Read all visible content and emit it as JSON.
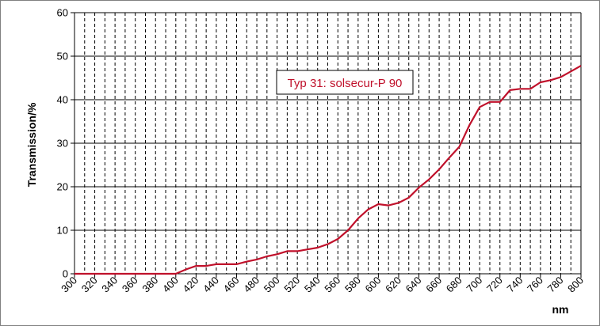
{
  "chart_data": {
    "type": "line",
    "xlabel": "nm",
    "ylabel": "Transmission/%",
    "xlim": [
      300,
      800
    ],
    "ylim": [
      0,
      60
    ],
    "x_ticks": [
      300,
      320,
      340,
      360,
      380,
      400,
      420,
      440,
      460,
      480,
      500,
      520,
      540,
      560,
      580,
      600,
      620,
      640,
      660,
      680,
      700,
      720,
      740,
      760,
      780,
      800
    ],
    "y_ticks": [
      0,
      10,
      20,
      30,
      40,
      50,
      60
    ],
    "grid": {
      "horizontal": "solid",
      "vertical": "dashed",
      "vertical_step": 10
    },
    "legend_placement": "inside-top-center",
    "series": [
      {
        "name": "Typ 31: solsecur-P 90",
        "color": "#c0112b",
        "x": [
          300,
          320,
          340,
          360,
          380,
          400,
          410,
          420,
          430,
          440,
          450,
          460,
          470,
          480,
          490,
          500,
          510,
          520,
          530,
          540,
          550,
          560,
          570,
          580,
          590,
          600,
          610,
          620,
          630,
          640,
          650,
          660,
          670,
          680,
          690,
          700,
          710,
          720,
          730,
          740,
          750,
          760,
          770,
          780,
          790,
          800
        ],
        "y": [
          0,
          0,
          0,
          0,
          0,
          0,
          1.0,
          1.8,
          1.8,
          2.2,
          2.2,
          2.2,
          2.8,
          3.3,
          4.0,
          4.5,
          5.2,
          5.2,
          5.6,
          6.0,
          6.8,
          8.0,
          10.0,
          12.7,
          14.8,
          16.0,
          15.7,
          16.3,
          17.5,
          19.8,
          21.7,
          24.0,
          26.7,
          29.2,
          34.2,
          38.3,
          39.5,
          39.5,
          42.2,
          42.5,
          42.5,
          44.0,
          44.5,
          45.2,
          46.5,
          47.8
        ]
      }
    ]
  }
}
